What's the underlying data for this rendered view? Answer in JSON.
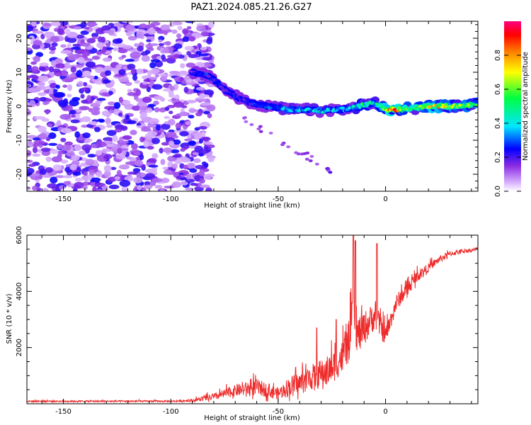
{
  "figure_title": "PAZ1.2024.085.21.26.G27",
  "chart_data": [
    {
      "type": "heatmap",
      "title": "PAZ1.2024.085.21.26.G27",
      "xlabel": "Height of straight line (km)",
      "ylabel": "Frequency (Hz)",
      "xlim": [
        -167,
        43
      ],
      "ylim": [
        -25,
        25
      ],
      "x_ticks": [
        -150,
        -100,
        -50,
        0
      ],
      "y_ticks": [
        -20,
        -10,
        0,
        10,
        20
      ],
      "colorbar": {
        "label": "Normalized spectral amplitude",
        "range": [
          0,
          1
        ],
        "ticks": [
          0.0,
          0.2,
          0.4,
          0.6,
          0.8
        ],
        "colors": [
          "#ffffff",
          "#d9b3ff",
          "#8a2be2",
          "#0000ff",
          "#00e5ff",
          "#00ff40",
          "#ffff00",
          "#ff7f00",
          "#ff0000",
          "#ff0080"
        ]
      },
      "signal_track": {
        "x": [
          -90,
          -85,
          -80,
          -75,
          -70,
          -65,
          -60,
          -55,
          -50,
          -45,
          -40,
          -35,
          -30,
          -25,
          -20,
          -15,
          -10,
          -5,
          0,
          5,
          10,
          15,
          20,
          25,
          30,
          35,
          40,
          43
        ],
        "y": [
          10,
          9.5,
          8,
          5,
          3,
          1.5,
          0.5,
          0,
          -0.5,
          -1,
          -1,
          -1,
          -1.5,
          -1,
          -1,
          -0.5,
          0.5,
          1,
          -1,
          -1,
          -0.5,
          -0.5,
          0,
          0,
          0,
          0,
          0.5,
          0.5
        ],
        "amplitude": [
          0.25,
          0.3,
          0.3,
          0.25,
          0.3,
          0.3,
          0.35,
          0.35,
          0.4,
          0.45,
          0.45,
          0.45,
          0.5,
          0.45,
          0.4,
          0.5,
          0.6,
          0.5,
          0.9,
          0.95,
          0.7,
          0.7,
          0.85,
          0.85,
          0.8,
          0.75,
          0.75,
          0.7
        ]
      },
      "noise_region": {
        "x_range": [
          -167,
          -85
        ],
        "amplitude_range": [
          0.05,
          0.25
        ]
      }
    },
    {
      "type": "line",
      "xlabel": "Height of straight line (km)",
      "ylabel": "SNR (10 * v/v)",
      "xlim": [
        -167,
        43
      ],
      "ylim": [
        0,
        6000
      ],
      "x_ticks": [
        -150,
        -100,
        -50,
        0
      ],
      "y_ticks": [
        2000,
        4000,
        6000
      ],
      "color": "#ee2a2a",
      "envelope": {
        "x": [
          -167,
          -140,
          -100,
          -90,
          -80,
          -70,
          -60,
          -55,
          -50,
          -45,
          -40,
          -35,
          -30,
          -25,
          -20,
          -17,
          -15,
          -13,
          -10,
          -5,
          0,
          5,
          10,
          15,
          20,
          25,
          30,
          35,
          40,
          43
        ],
        "base": [
          80,
          80,
          80,
          100,
          200,
          400,
          500,
          400,
          300,
          500,
          600,
          800,
          900,
          1100,
          1500,
          2000,
          3000,
          2200,
          2500,
          3000,
          2300,
          3500,
          4000,
          4500,
          4800,
          5100,
          5300,
          5400,
          5450,
          5500
        ],
        "spread": [
          60,
          60,
          60,
          100,
          250,
          400,
          600,
          500,
          400,
          700,
          800,
          900,
          1000,
          1100,
          1200,
          1500,
          1400,
          1400,
          1200,
          1000,
          700,
          600,
          500,
          400,
          300,
          250,
          200,
          150,
          120,
          120
        ]
      },
      "peaks": [
        {
          "x": -15,
          "y": 6000
        },
        {
          "x": -14,
          "y": 5800
        },
        {
          "x": -4,
          "y": 5700
        },
        {
          "x": -23,
          "y": 3000
        },
        {
          "x": -32,
          "y": 2700
        }
      ]
    }
  ]
}
